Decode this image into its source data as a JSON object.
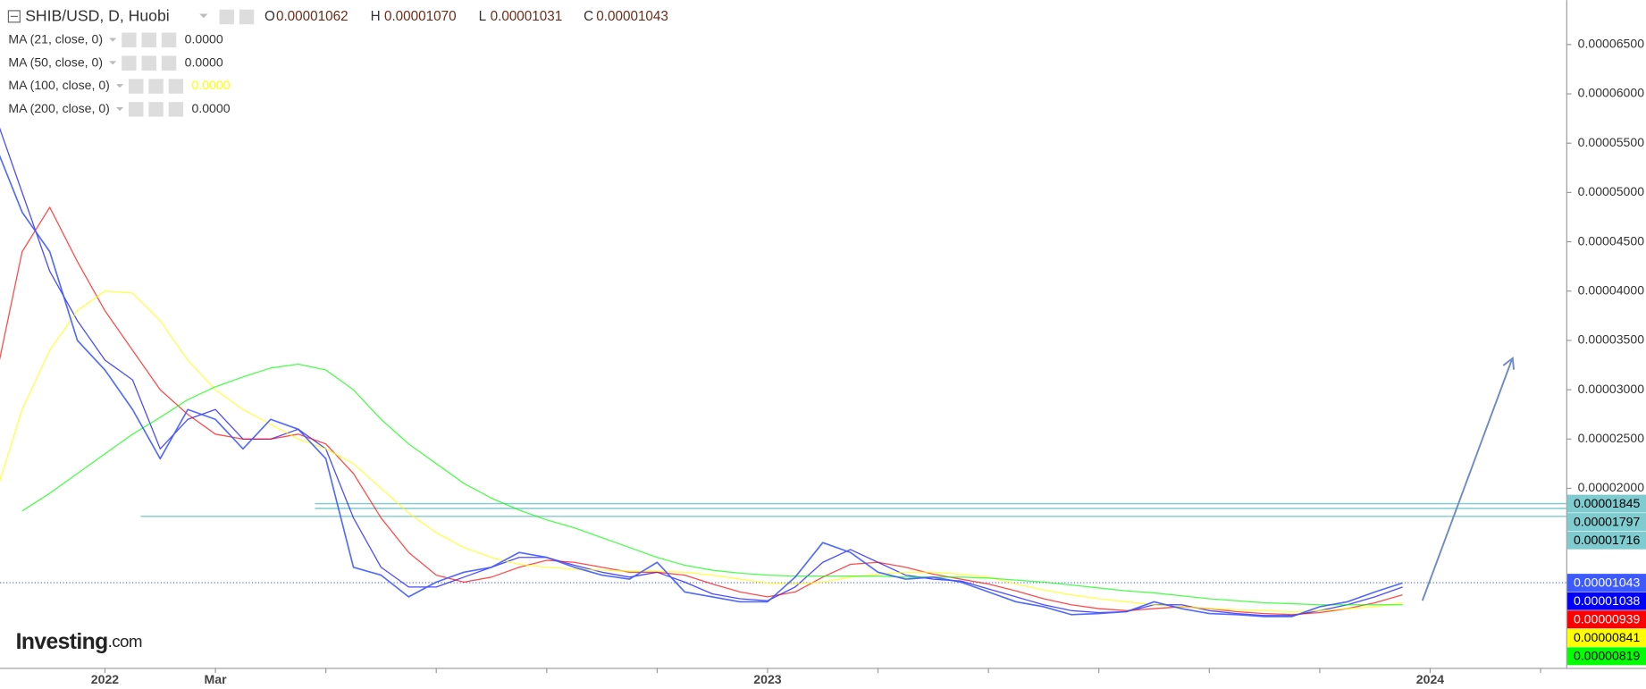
{
  "header": {
    "symbol": "SHIB/USD, D, Huobi",
    "ohlc": [
      {
        "key": "O",
        "value": "0.00001062"
      },
      {
        "key": "H",
        "value": "0.00001070"
      },
      {
        "key": "L",
        "value": "0.00001031"
      },
      {
        "key": "C",
        "value": "0.00001043"
      }
    ]
  },
  "logo": {
    "brand": "Investing",
    "suffix": ".com"
  },
  "chart_data": {
    "type": "line",
    "categories": [
      null,
      null,
      null,
      null,
      "2022",
      null,
      null,
      null,
      "Mar",
      null,
      null,
      null,
      null,
      null,
      null,
      null,
      null,
      null,
      null,
      null,
      null,
      null,
      null,
      null,
      null,
      null,
      null,
      null,
      "2023",
      null,
      null,
      null,
      null,
      null,
      null,
      null,
      null,
      null,
      null,
      null,
      null,
      null,
      null,
      null,
      null,
      null,
      null,
      null,
      null,
      null,
      null,
      null,
      "2024",
      null,
      null,
      null,
      null
    ],
    "series": [
      {
        "color": "#3d5afe",
        "last_label": 1.043e-05,
        "values": [
          5.5e-05,
          4.8e-05,
          4.4e-05,
          3.5e-05,
          3.2e-05,
          2.8e-05,
          2.3e-05,
          2.8e-05,
          2.7e-05,
          2.4e-05,
          2.7e-05,
          2.6e-05,
          2.3e-05,
          1.2e-05,
          1.12e-05,
          9e-06,
          1.05e-05,
          1.15e-05,
          1.2e-05,
          1.35e-05,
          1.3e-05,
          1.2e-05,
          1.12e-05,
          1.08e-05,
          1.25e-05,
          9.5e-06,
          9e-06,
          8.5e-06,
          8.5e-06,
          1.1e-05,
          1.45e-05,
          1.35e-05,
          1.15e-05,
          1.08e-05,
          1.1e-05,
          1.05e-05,
          9.5e-06,
          8.5e-06,
          8e-06,
          7.2e-06,
          7.3e-06,
          7.5e-06,
          8.5e-06,
          7.8e-06,
          7.3e-06,
          7.2e-06,
          7e-06,
          7e-06,
          8e-06,
          8.5e-06,
          9.5e-06,
          1.04e-05,
          null,
          null,
          null,
          null,
          null
        ]
      },
      {
        "name": "MA (21, close, 0)",
        "legend_value": "0.0000",
        "color": "#0000ff",
        "last_label": 1.038e-05,
        "values": [
          5.8e-05,
          5e-05,
          4.2e-05,
          3.7e-05,
          3.3e-05,
          3.1e-05,
          2.4e-05,
          2.7e-05,
          2.8e-05,
          2.5e-05,
          2.5e-05,
          2.6e-05,
          2.4e-05,
          1.7e-05,
          1.2e-05,
          1e-05,
          1e-05,
          1.1e-05,
          1.2e-05,
          1.3e-05,
          1.3e-05,
          1.22e-05,
          1.15e-05,
          1.1e-05,
          1.15e-05,
          1.05e-05,
          9.3e-06,
          8.8e-06,
          8.6e-06,
          1e-05,
          1.25e-05,
          1.38e-05,
          1.25e-05,
          1.12e-05,
          1.08e-05,
          1.06e-05,
          9.8e-06,
          9e-06,
          8.2e-06,
          7.6e-06,
          7.4e-06,
          7.5e-06,
          8.2e-06,
          8.2e-06,
          7.6e-06,
          7.3e-06,
          7.1e-06,
          7.1e-06,
          7.6e-06,
          8.2e-06,
          9e-06,
          1e-05,
          null,
          null,
          null,
          null,
          null
        ]
      },
      {
        "name": "MA (50, close, 0)",
        "legend_value": "0.0000",
        "color": "#ff0000",
        "last_label": 9.39e-06,
        "values": [
          3.06e-05,
          4.4e-05,
          4.85e-05,
          4.3e-05,
          3.8e-05,
          3.4e-05,
          3e-05,
          2.75e-05,
          2.55e-05,
          2.5e-05,
          2.5e-05,
          2.55e-05,
          2.45e-05,
          2.15e-05,
          1.7e-05,
          1.35e-05,
          1.12e-05,
          1.05e-05,
          1.1e-05,
          1.2e-05,
          1.27e-05,
          1.25e-05,
          1.2e-05,
          1.15e-05,
          1.15e-05,
          1.12e-05,
          1.03e-05,
          9.5e-06,
          9e-06,
          9.5e-06,
          1.1e-05,
          1.23e-05,
          1.25e-05,
          1.2e-05,
          1.13e-05,
          1.08e-05,
          1.03e-05,
          9.6e-06,
          8.8e-06,
          8.2e-06,
          7.8e-06,
          7.6e-06,
          7.8e-06,
          8e-06,
          7.8e-06,
          7.5e-06,
          7.3e-06,
          7.2e-06,
          7.4e-06,
          7.8e-06,
          8.4e-06,
          9.2e-06,
          null,
          null,
          null,
          null,
          null
        ]
      },
      {
        "name": "MA (100, close, 0)",
        "legend_value": "0.0000",
        "color": "#ffff00",
        "last_label": 8.41e-06,
        "values": [
          1.9e-05,
          2.8e-05,
          3.4e-05,
          3.8e-05,
          4e-05,
          3.98e-05,
          3.7e-05,
          3.3e-05,
          3e-05,
          2.8e-05,
          2.65e-05,
          2.5e-05,
          2.4e-05,
          2.25e-05,
          2e-05,
          1.75e-05,
          1.55e-05,
          1.4e-05,
          1.3e-05,
          1.23e-05,
          1.2e-05,
          1.18e-05,
          1.17e-05,
          1.16e-05,
          1.16e-05,
          1.15e-05,
          1.12e-05,
          1.08e-05,
          1.04e-05,
          1.03e-05,
          1.05e-05,
          1.1e-05,
          1.13e-05,
          1.15e-05,
          1.15e-05,
          1.13e-05,
          1.1e-05,
          1.03e-05,
          9.7e-06,
          9.2e-06,
          8.8e-06,
          8.5e-06,
          8.2e-06,
          8e-06,
          7.8e-06,
          7.7e-06,
          7.6e-06,
          7.5e-06,
          7.6e-06,
          7.8e-06,
          8e-06,
          8.4e-06,
          null,
          null,
          null,
          null,
          null
        ]
      },
      {
        "name": "MA (200, close, 0)",
        "legend_value": "0.0000",
        "color": "#00ff00",
        "last_label": 8.19e-06,
        "values": [
          null,
          1.77e-05,
          1.95e-05,
          2.15e-05,
          2.35e-05,
          2.55e-05,
          2.72e-05,
          2.9e-05,
          3.03e-05,
          3.13e-05,
          3.22e-05,
          3.26e-05,
          3.2e-05,
          3e-05,
          2.7e-05,
          2.45e-05,
          2.25e-05,
          2.05e-05,
          1.9e-05,
          1.78e-05,
          1.68e-05,
          1.6e-05,
          1.5e-05,
          1.4e-05,
          1.3e-05,
          1.22e-05,
          1.17e-05,
          1.14e-05,
          1.12e-05,
          1.11e-05,
          1.11e-05,
          1.11e-05,
          1.11e-05,
          1.1e-05,
          1.1e-05,
          1.1e-05,
          1.09e-05,
          1.07e-05,
          1.05e-05,
          1.02e-05,
          9.9e-06,
          9.6e-06,
          9.4e-06,
          9.1e-06,
          8.8e-06,
          8.6e-06,
          8.4e-06,
          8.3e-06,
          8.2e-06,
          8.2e-06,
          8.2e-06,
          8.2e-06,
          null,
          null,
          null,
          null,
          null
        ]
      }
    ],
    "levels": [
      1.845e-05,
      1.797e-05,
      1.716e-05
    ],
    "levels_color": "#7ecbd0",
    "ylim": [
      1.8e-06,
      6.95e-05
    ],
    "yticks": [
      {
        "value": 2e-05,
        "label": "0.00002000"
      },
      {
        "value": 2.5e-05,
        "label": "0.00002500"
      },
      {
        "value": 3e-05,
        "label": "0.00003000"
      },
      {
        "value": 3.5e-05,
        "label": "0.00003500"
      },
      {
        "value": 4e-05,
        "label": "0.00004000"
      },
      {
        "value": 4.5e-05,
        "label": "0.00004500"
      },
      {
        "value": 5e-05,
        "label": "0.00005000"
      },
      {
        "value": 5.5e-05,
        "label": "0.00005500"
      },
      {
        "value": 6e-05,
        "label": "0.00006000"
      },
      {
        "value": 6.5e-05,
        "label": "0.00006500"
      }
    ],
    "grid": false
  }
}
